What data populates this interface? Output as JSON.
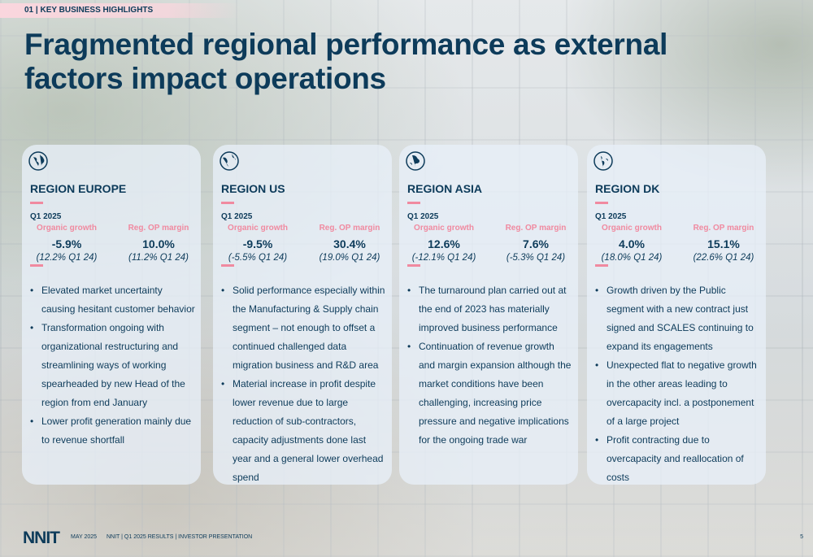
{
  "section_tag": "01 | KEY BUSINESS HIGHLIGHTS",
  "title": "Fragmented regional performance as external factors impact operations",
  "regions": [
    {
      "name": "REGION EUROPE",
      "period": "Q1 2025",
      "metric1_label": "Organic growth",
      "metric1_value": "-5.9%",
      "metric1_compare": "(12.2% Q1 24)",
      "metric2_label": "Reg. OP margin",
      "metric2_value": "10.0%",
      "metric2_compare": "(11.2% Q1 24)",
      "bullets": [
        "Elevated market uncertainty causing hesitant customer behavior",
        "Transformation ongoing with organizational restructuring and streamlining ways of working spearheaded by new Head of the region from end January",
        "Lower profit generation mainly due to revenue shortfall"
      ]
    },
    {
      "name": "REGION US",
      "period": "Q1 2025",
      "metric1_label": "Organic growth",
      "metric1_value": "-9.5%",
      "metric1_compare": "(-5.5% Q1 24)",
      "metric2_label": "Reg. OP margin",
      "metric2_value": "30.4%",
      "metric2_compare": "(19.0% Q1 24)",
      "bullets": [
        "Solid performance especially within the Manufacturing & Supply chain segment – not enough to offset a continued challenged data migration business and R&D area",
        "Material increase in profit despite lower revenue due to large reduction of sub-contractors, capacity adjustments done last year and a general lower overhead spend"
      ]
    },
    {
      "name": "REGION ASIA",
      "period": "Q1 2025",
      "metric1_label": "Organic growth",
      "metric1_value": "12.6%",
      "metric1_compare": "(-12.1% Q1 24)",
      "metric2_label": "Reg. OP margin",
      "metric2_value": "7.6%",
      "metric2_compare": "(-5.3% Q1 24)",
      "bullets": [
        "The turnaround plan carried out at the end of 2023 has materially improved business performance",
        "Continuation of revenue growth and margin expansion although the market conditions have been challenging, increasing price pressure and negative implications for the ongoing trade war"
      ]
    },
    {
      "name": "REGION DK",
      "period": "Q1 2025",
      "metric1_label": "Organic growth",
      "metric1_value": "4.0%",
      "metric1_compare": "(18.0% Q1 24)",
      "metric2_label": "Reg. OP margin",
      "metric2_value": "15.1%",
      "metric2_compare": "(22.6% Q1 24)",
      "bullets": [
        "Growth driven by the Public segment with a new contract just signed and SCALES continuing to expand its engagements",
        "Unexpected flat to negative growth in the other areas leading to overcapacity incl. a postponement of a large project",
        "Profit contracting due to overcapacity and reallocation of costs"
      ]
    }
  ],
  "footer": {
    "logo": "NNIT",
    "date": "MAY 2025",
    "doc_title": "NNIT | Q1 2025 RESULTS | INVESTOR PRESENTATION",
    "page": "5"
  },
  "colors": {
    "navy": "#0d3b5a",
    "pink": "#f08aa0",
    "card": "#e8f0f8"
  },
  "icons": {
    "region_icon": "globe-icon"
  }
}
